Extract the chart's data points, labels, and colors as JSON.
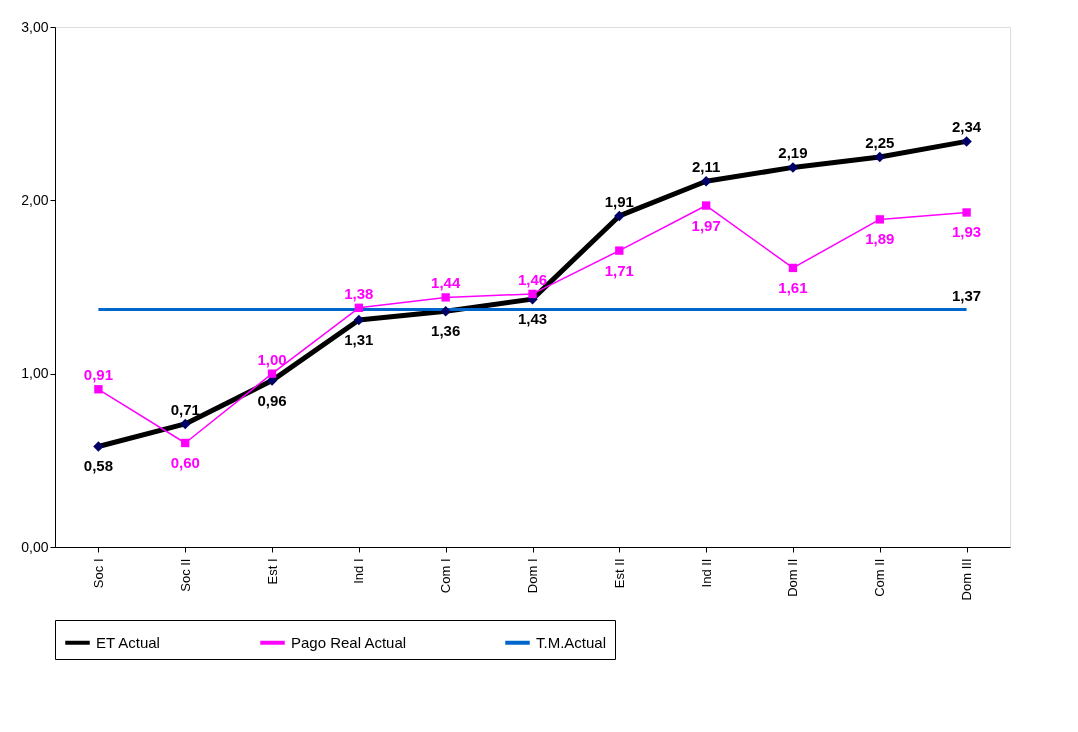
{
  "chart_data": {
    "type": "line",
    "categories": [
      "Soc I",
      "Soc II",
      "Est I",
      "Ind I",
      "Com I",
      "Dom I",
      "Est II",
      "Ind II",
      "Dom II",
      "Com II",
      "Dom III"
    ],
    "series": [
      {
        "name": "ET Actual",
        "color": "#000000",
        "marker": "diamond",
        "values": [
          0.58,
          0.71,
          0.96,
          1.31,
          1.36,
          1.43,
          1.91,
          2.11,
          2.19,
          2.25,
          2.34
        ],
        "value_labels": [
          "0,58",
          "0,71",
          "0,96",
          "1,31",
          "1,36",
          "1,43",
          "1,91",
          "2,11",
          "2,19",
          "2,25",
          "2,34"
        ]
      },
      {
        "name": "Pago Real Actual",
        "color": "#ff00ff",
        "marker": "square",
        "values": [
          0.91,
          0.6,
          1.0,
          1.38,
          1.44,
          1.46,
          1.71,
          1.97,
          1.61,
          1.89,
          1.93
        ],
        "value_labels": [
          "0,91",
          "0,60",
          "1,00",
          "1,38",
          "1,44",
          "1,46",
          "1,71",
          "1,97",
          "1,61",
          "1,89",
          "1,93"
        ]
      },
      {
        "name": "T.M.Actual",
        "color": "#0066cc",
        "marker": "none",
        "values": [
          1.37,
          1.37,
          1.37,
          1.37,
          1.37,
          1.37,
          1.37,
          1.37,
          1.37,
          1.37,
          1.37
        ],
        "value_labels": [
          null,
          null,
          null,
          null,
          null,
          null,
          null,
          null,
          null,
          null,
          "1,37"
        ]
      }
    ],
    "ylim": [
      0,
      3
    ],
    "yticks": [
      {
        "value": 0,
        "label": "0,00"
      },
      {
        "value": 1,
        "label": "1,00"
      },
      {
        "value": 2,
        "label": "2,00"
      },
      {
        "value": 3,
        "label": "3,00"
      }
    ],
    "grid": false,
    "legend": "bottom"
  }
}
